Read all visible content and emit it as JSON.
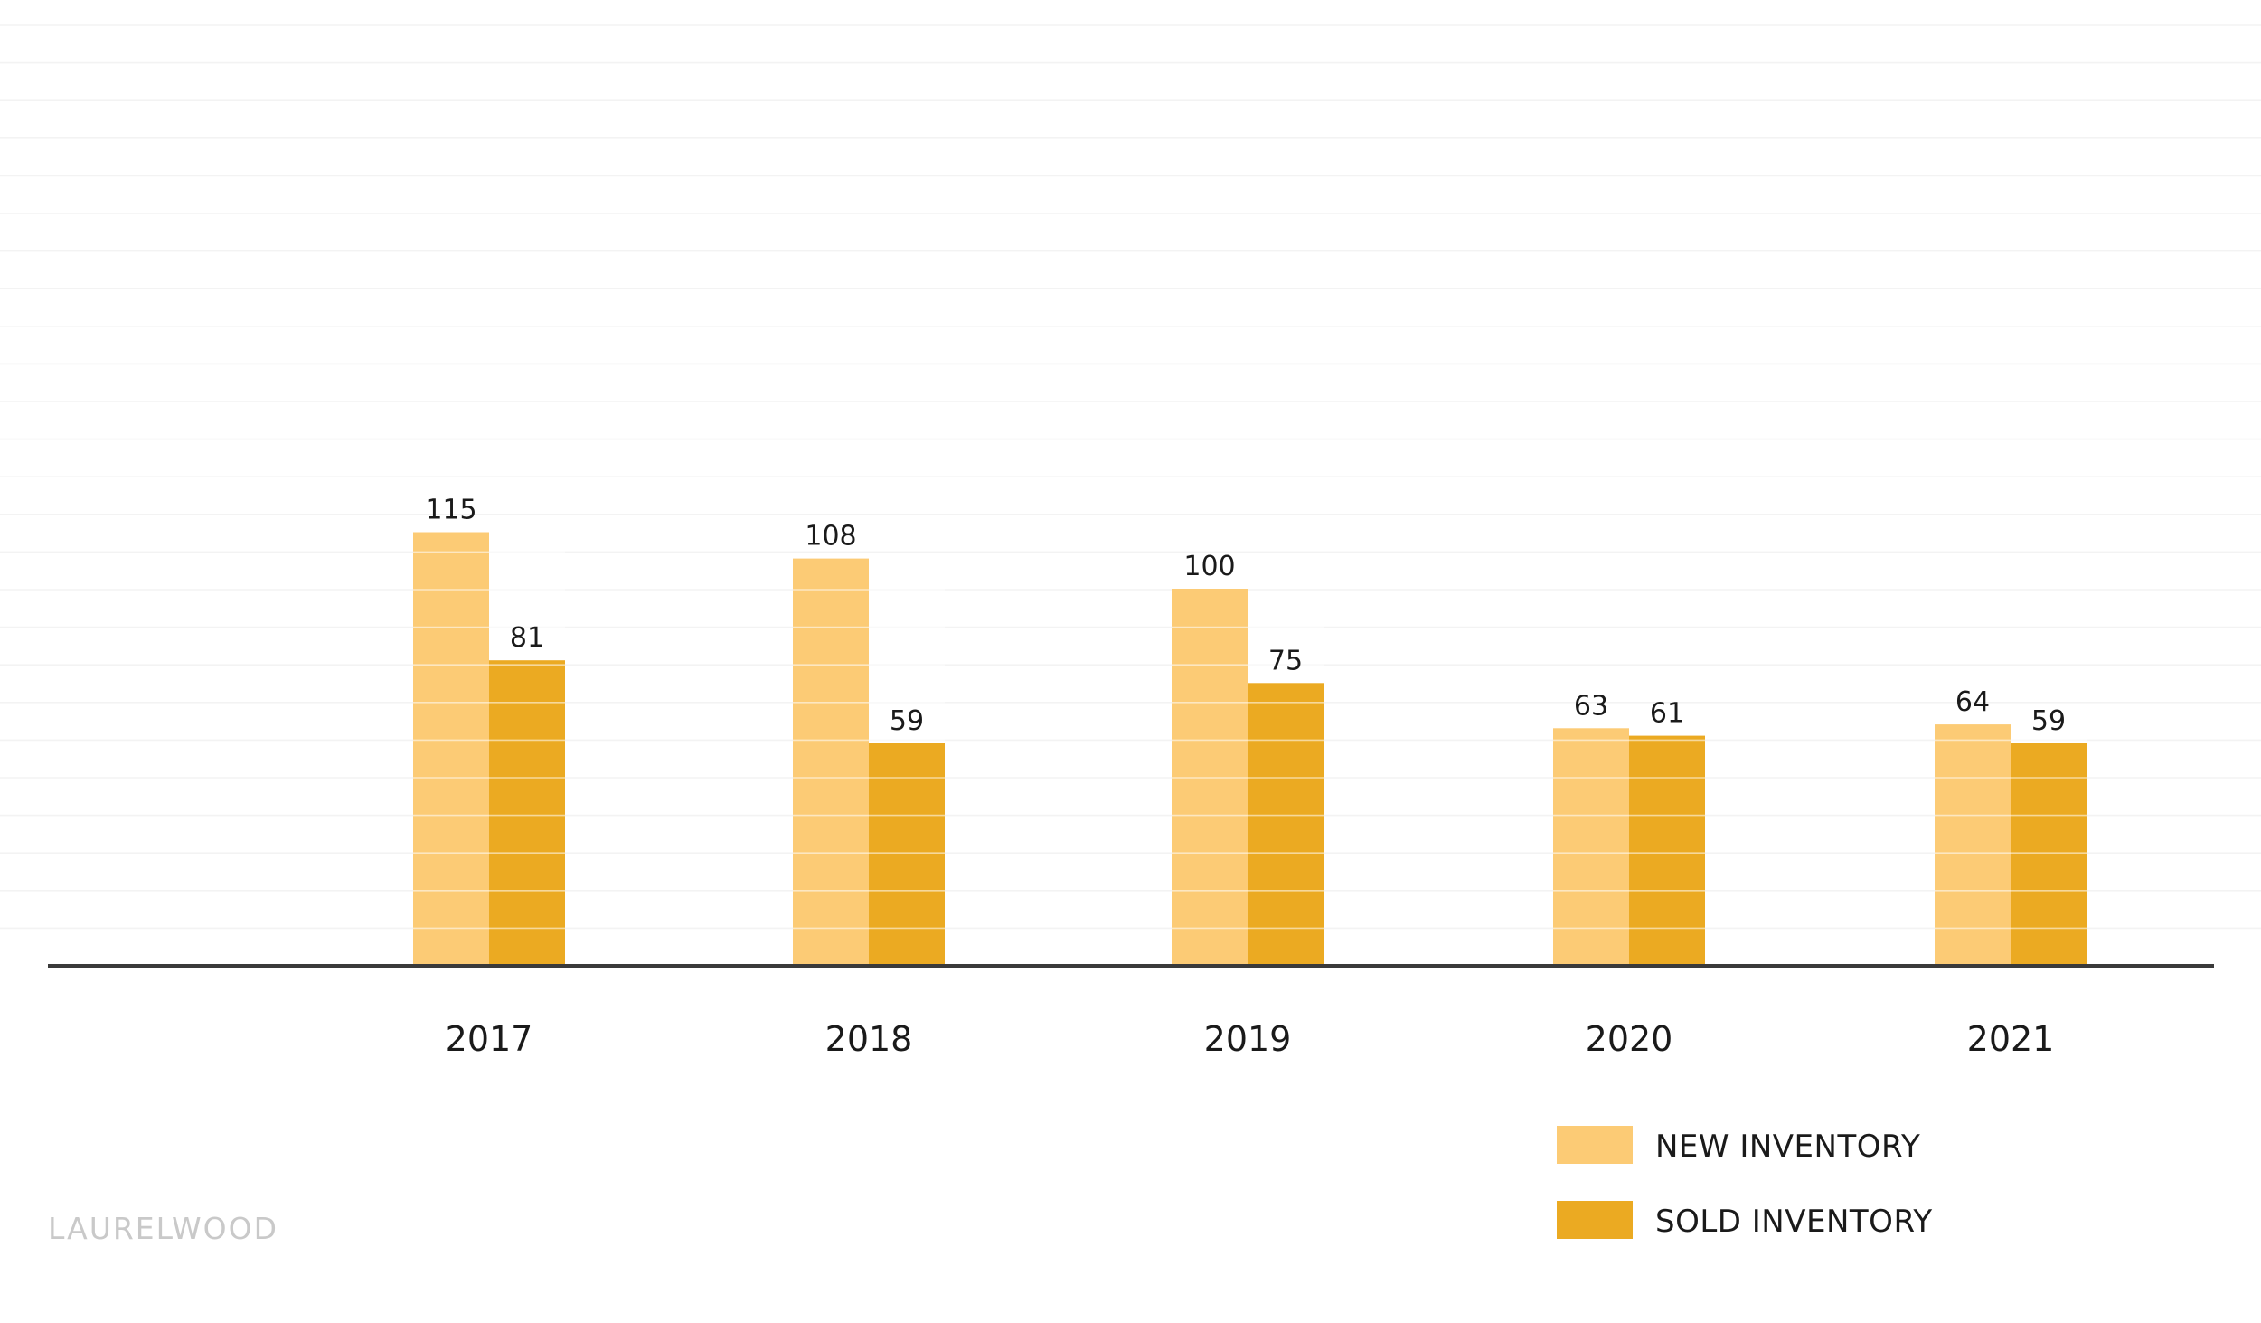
{
  "chart_data": {
    "type": "bar",
    "categories": [
      "2017",
      "2018",
      "2019",
      "2020",
      "2021"
    ],
    "series": [
      {
        "name": "NEW INVENTORY",
        "values": [
          115,
          108,
          100,
          63,
          64
        ],
        "color": "#FCCB75"
      },
      {
        "name": "SOLD INVENTORY",
        "values": [
          81,
          59,
          75,
          61,
          59
        ],
        "color": "#EBAA22"
      }
    ],
    "title": "",
    "xlabel": "",
    "ylabel": "",
    "ylim": [
      0,
      250
    ],
    "grid": true,
    "legend": "bottom-right",
    "data_labels": true
  },
  "brand": "LAURELWOOD",
  "colors": {
    "axis": "#3a3a3a",
    "grid": "#f3f3f3",
    "brand_text": "#c9c9c9"
  }
}
